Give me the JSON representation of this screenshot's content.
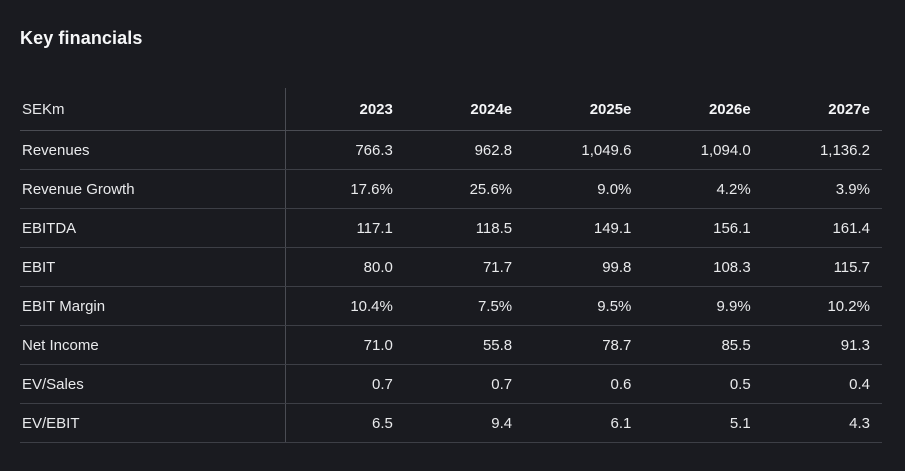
{
  "page": {
    "title": "Key financials",
    "theme": {
      "background": "#1a1b20",
      "text": "#e9eaec",
      "heading_text": "#f6f7f8",
      "divider": "#3d3f46",
      "divider_strong": "#4a4c53"
    }
  },
  "table": {
    "unit_label": "SEKm",
    "columns": [
      "2023",
      "2024e",
      "2025e",
      "2026e",
      "2027e"
    ],
    "rows": [
      {
        "label": "Revenues",
        "values": [
          "766.3",
          "962.8",
          "1,049.6",
          "1,094.0",
          "1,136.2"
        ]
      },
      {
        "label": "Revenue Growth",
        "values": [
          "17.6%",
          "25.6%",
          "9.0%",
          "4.2%",
          "3.9%"
        ]
      },
      {
        "label": "EBITDA",
        "values": [
          "117.1",
          "118.5",
          "149.1",
          "156.1",
          "161.4"
        ]
      },
      {
        "label": "EBIT",
        "values": [
          "80.0",
          "71.7",
          "99.8",
          "108.3",
          "115.7"
        ]
      },
      {
        "label": "EBIT Margin",
        "values": [
          "10.4%",
          "7.5%",
          "9.5%",
          "9.9%",
          "10.2%"
        ]
      },
      {
        "label": "Net Income",
        "values": [
          "71.0",
          "55.8",
          "78.7",
          "85.5",
          "91.3"
        ]
      },
      {
        "label": "EV/Sales",
        "values": [
          "0.7",
          "0.7",
          "0.6",
          "0.5",
          "0.4"
        ]
      },
      {
        "label": "EV/EBIT",
        "values": [
          "6.5",
          "9.4",
          "6.1",
          "5.1",
          "4.3"
        ]
      }
    ]
  }
}
